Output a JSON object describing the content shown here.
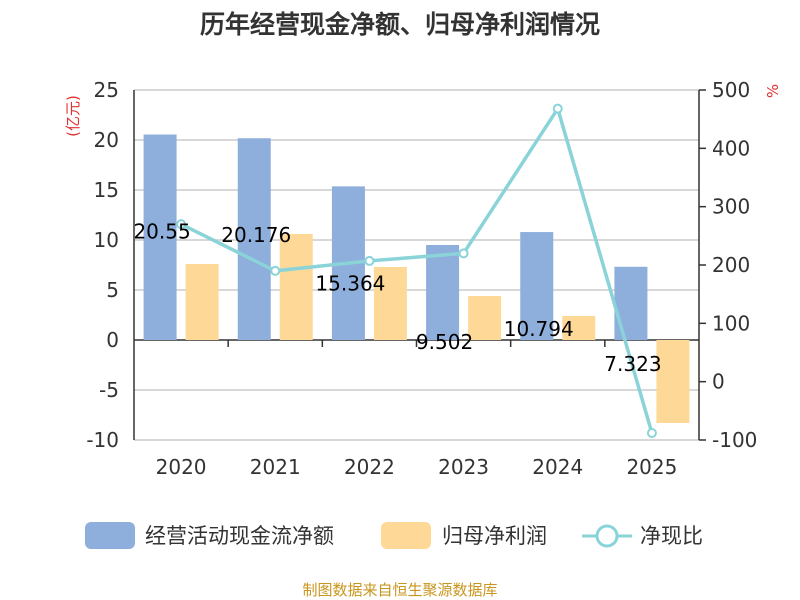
{
  "chart_data": {
    "type": "bar",
    "title": "历年经营现金净额、归母净利润情况",
    "categories": [
      "2020",
      "2021",
      "2022",
      "2023",
      "2024",
      "2025"
    ],
    "series": [
      {
        "name": "经营活动现金流净额",
        "kind": "bar",
        "axis": "left",
        "color": "#8eaedb",
        "values": [
          20.55,
          20.176,
          15.364,
          9.502,
          10.794,
          7.323
        ],
        "labels": [
          "20.55",
          "20.176",
          "15.364",
          "9.502",
          "10.794",
          "7.323"
        ]
      },
      {
        "name": "归母净利润",
        "kind": "bar",
        "axis": "left",
        "color": "#fed897",
        "values": [
          7.6,
          10.6,
          7.3,
          4.4,
          2.4,
          -8.3
        ]
      },
      {
        "name": "净现比",
        "kind": "line",
        "axis": "right",
        "color": "#8ad3d9",
        "values": [
          270,
          190,
          207,
          220,
          468,
          -88
        ]
      }
    ],
    "left_axis": {
      "label": "(亿元)",
      "min": -10,
      "max": 25,
      "ticks": [
        "25",
        "20",
        "15",
        "10",
        "5",
        "0",
        "-5",
        "-10"
      ]
    },
    "right_axis": {
      "label": "%",
      "min": -100,
      "max": 500,
      "ticks": [
        "500",
        "400",
        "300",
        "200",
        "100",
        "0",
        "-100"
      ]
    },
    "grid": true,
    "legend_position": "bottom"
  },
  "source": "制图数据来自恒生聚源数据库"
}
